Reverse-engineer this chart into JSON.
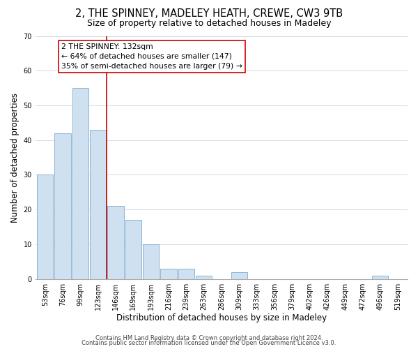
{
  "title": "2, THE SPINNEY, MADELEY HEATH, CREWE, CW3 9TB",
  "subtitle": "Size of property relative to detached houses in Madeley",
  "xlabel": "Distribution of detached houses by size in Madeley",
  "ylabel": "Number of detached properties",
  "bar_labels": [
    "53sqm",
    "76sqm",
    "99sqm",
    "123sqm",
    "146sqm",
    "169sqm",
    "193sqm",
    "216sqm",
    "239sqm",
    "263sqm",
    "286sqm",
    "309sqm",
    "333sqm",
    "356sqm",
    "379sqm",
    "402sqm",
    "426sqm",
    "449sqm",
    "472sqm",
    "496sqm",
    "519sqm"
  ],
  "bar_heights": [
    30,
    42,
    55,
    43,
    21,
    17,
    10,
    3,
    3,
    1,
    0,
    2,
    0,
    0,
    0,
    0,
    0,
    0,
    0,
    1,
    0
  ],
  "bar_color": "#cfe0f0",
  "bar_edge_color": "#8ab4d4",
  "vline_x": 3.5,
  "vline_color": "#cc0000",
  "ylim": [
    0,
    70
  ],
  "yticks": [
    0,
    10,
    20,
    30,
    40,
    50,
    60,
    70
  ],
  "annotation_text": "2 THE SPINNEY: 132sqm\n← 64% of detached houses are smaller (147)\n35% of semi-detached houses are larger (79) →",
  "footer_line1": "Contains HM Land Registry data © Crown copyright and database right 2024.",
  "footer_line2": "Contains public sector information licensed under the Open Government Licence v3.0.",
  "background_color": "#ffffff",
  "grid_color": "#d0dae8",
  "title_fontsize": 10.5,
  "subtitle_fontsize": 9,
  "axis_label_fontsize": 8.5,
  "tick_fontsize": 7,
  "annotation_fontsize": 7.8,
  "footer_fontsize": 6
}
